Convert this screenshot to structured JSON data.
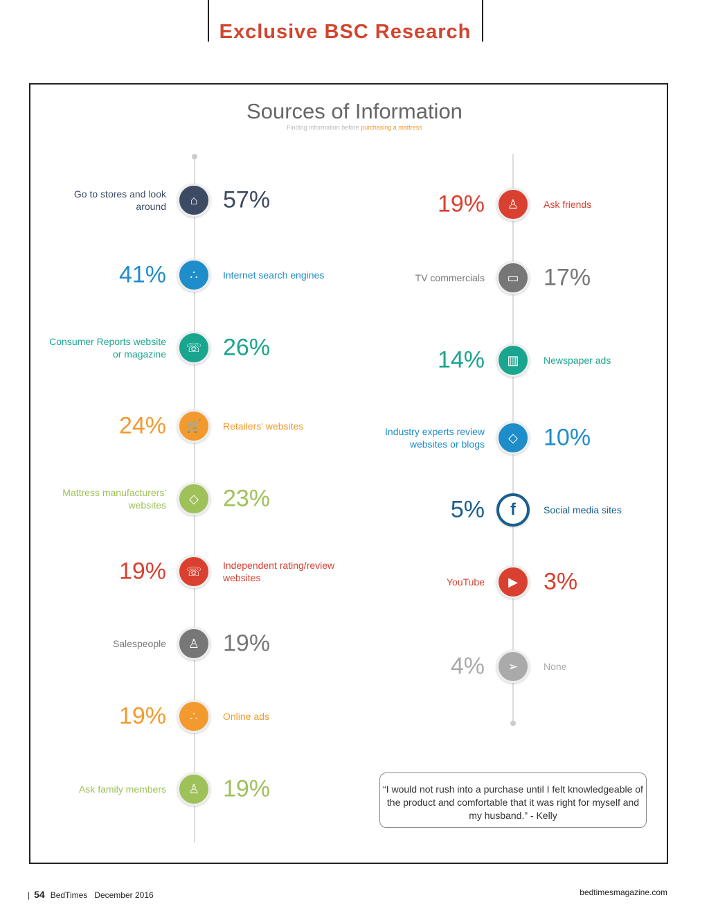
{
  "header": {
    "kicker": "Exclusive BSC Research"
  },
  "infographic": {
    "title": "Sources of Information",
    "subtitle_a": "Finding information before ",
    "subtitle_b": "purchasing a mattress",
    "left": [
      {
        "label": "Go to stores and look around",
        "pct": "57%",
        "color": "#3d4a63",
        "icon": "store-icon"
      },
      {
        "label": "Internet search engines",
        "pct": "41%",
        "color": "#1f8dc9",
        "icon": "chart-dots-icon"
      },
      {
        "label": "Consumer Reports website or magazine",
        "pct": "26%",
        "color": "#1aa58f",
        "icon": "megaphone-icon"
      },
      {
        "label": "Retailers' websites",
        "pct": "24%",
        "color": "#f29a2e",
        "icon": "cart-icon"
      },
      {
        "label": "Mattress manufacturers' websites",
        "pct": "23%",
        "color": "#9ec15a",
        "icon": "diamond-icon"
      },
      {
        "label": "Independent rating/review websites",
        "pct": "19%",
        "color": "#d94030",
        "icon": "megaphone-icon"
      },
      {
        "label": "Salespeople",
        "pct": "19%",
        "color": "#777777",
        "icon": "person-icon"
      },
      {
        "label": "Online ads",
        "pct": "19%",
        "color": "#f29a2e",
        "icon": "chart-dots-icon"
      },
      {
        "label": "Ask family members",
        "pct": "19%",
        "color": "#9ec15a",
        "icon": "person-icon"
      }
    ],
    "right": [
      {
        "label": "Ask friends",
        "pct": "19%",
        "color": "#d94030",
        "icon": "person-icon"
      },
      {
        "label": "TV commercials",
        "pct": "17%",
        "color": "#777777",
        "icon": "tv-icon"
      },
      {
        "label": "Newspaper ads",
        "pct": "14%",
        "color": "#1aa58f",
        "icon": "book-icon"
      },
      {
        "label": "Industry experts review websites or blogs",
        "pct": "10%",
        "color": "#1f8dc9",
        "icon": "diamond-icon"
      },
      {
        "label": "Social media sites",
        "pct": "5%",
        "color": "#1a5f8f",
        "icon": "facebook-icon"
      },
      {
        "label": "YouTube",
        "pct": "3%",
        "color": "#d94030",
        "icon": "video-icon"
      },
      {
        "label": "None",
        "pct": "4%",
        "color": "#aaaaaa",
        "icon": "paper-plane-icon"
      }
    ],
    "quote": "“I would not rush into a purchase until I felt knowledgeable of the product and comfortable that it was right for myself and my husband.” - Kelly"
  },
  "footer": {
    "page": "54",
    "magazine": "BedTimes",
    "date": "December 2016",
    "site": "bedtimesmagazine.com"
  }
}
